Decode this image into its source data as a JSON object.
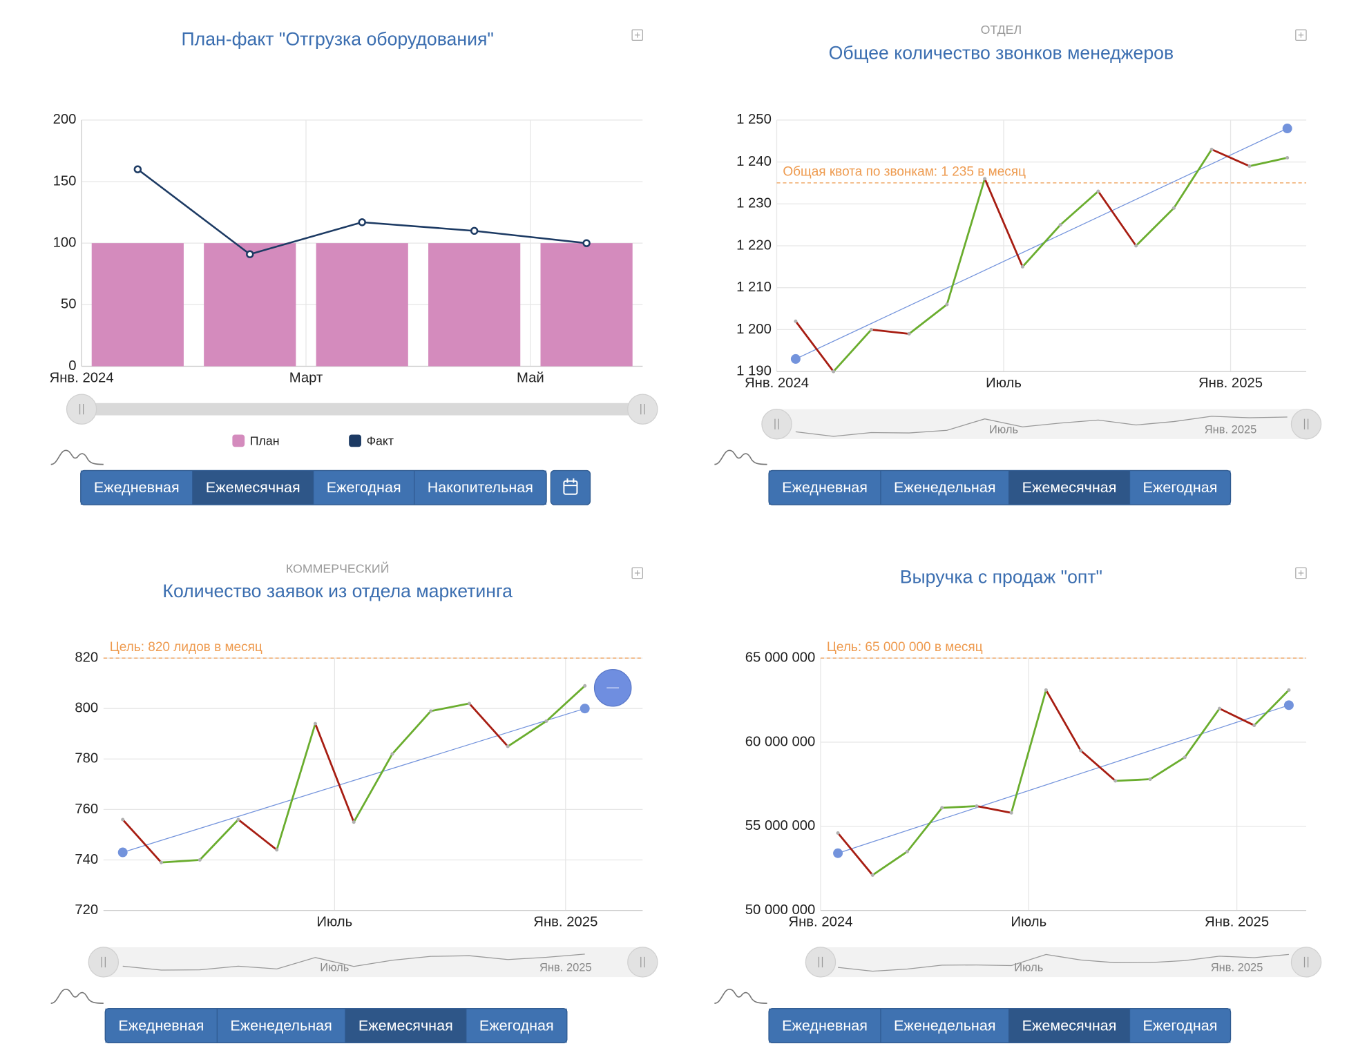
{
  "chart_data": [
    {
      "type": "bar",
      "title": "План-факт \"Отгрузка оборудования\"",
      "x": [
        "2024-01",
        "2024-02",
        "2024-03",
        "2024-04",
        "2024-05"
      ],
      "xlim": [
        "2024-01",
        "2024-06"
      ],
      "xticks": [
        {
          "value": "2024-01",
          "label": "Янв. 2024"
        },
        {
          "value": "2024-03",
          "label": "Март"
        },
        {
          "value": "2024-05",
          "label": "Май"
        }
      ],
      "ylim": [
        0,
        200
      ],
      "yticks": [
        0,
        50,
        100,
        150,
        200
      ],
      "grid": true,
      "series": [
        {
          "name": "План",
          "type": "bar",
          "color": "#d48bbd",
          "values": [
            100,
            100,
            100,
            100,
            100
          ]
        },
        {
          "name": "Факт",
          "type": "line",
          "color": "#1c3a63",
          "values": [
            160,
            91,
            117,
            110,
            100
          ]
        }
      ],
      "buttons": [
        "Ежедневная",
        "Ежемесячная",
        "Ежегодная",
        "Накопительная"
      ],
      "active_button": 1
    },
    {
      "type": "line",
      "subtitle": "ОТДЕЛ",
      "title": "Общее количество звонков менеджеров",
      "x": [
        "2024-01",
        "2024-02",
        "2024-03",
        "2024-04",
        "2024-05",
        "2024-06",
        "2024-07",
        "2024-08",
        "2024-09",
        "2024-10",
        "2024-11",
        "2024-12",
        "2025-01",
        "2025-02"
      ],
      "xlim": [
        "2024-01",
        "2025-03"
      ],
      "xticks": [
        {
          "value": "2024-01",
          "label": "Янв. 2024"
        },
        {
          "value": "2024-07",
          "label": "Июль"
        },
        {
          "value": "2025-01",
          "label": "Янв. 2025"
        }
      ],
      "ylim": [
        1190,
        1250
      ],
      "yticks": [
        {
          "value": 1190,
          "label": "1 190"
        },
        {
          "value": 1200,
          "label": "1 200"
        },
        {
          "value": 1210,
          "label": "1 210"
        },
        {
          "value": 1220,
          "label": "1 220"
        },
        {
          "value": 1230,
          "label": "1 230"
        },
        {
          "value": 1240,
          "label": "1 240"
        },
        {
          "value": 1250,
          "label": "1 250"
        }
      ],
      "values": [
        1202,
        1190,
        1200,
        1199,
        1206,
        1236,
        1215,
        1225,
        1233,
        1220,
        1229,
        1243,
        1239,
        1241
      ],
      "up_color": "#6aad2e",
      "down_color": "#a71d12",
      "trend": [
        1193,
        1248
      ],
      "trend_color": "#7393dc",
      "target": 1235,
      "target_label": "Общая квота по звонкам: 1 235 в месяц",
      "target_color": "#ee9a4e",
      "grid": true,
      "buttons": [
        "Ежедневная",
        "Еженедельная",
        "Ежемесячная",
        "Ежегодная"
      ],
      "active_button": 2
    },
    {
      "type": "line",
      "subtitle": "КОММЕРЧЕСКИЙ",
      "title": "Количество заявок из отдела маркетинга",
      "x": [
        "2024-01",
        "2024-02",
        "2024-03",
        "2024-04",
        "2024-05",
        "2024-06",
        "2024-07",
        "2024-08",
        "2024-09",
        "2024-10",
        "2024-11",
        "2024-12",
        "2025-01"
      ],
      "xlim": [
        "2024-01",
        "2025-03"
      ],
      "xticks": [
        {
          "value": "2024-07",
          "label": "Июль"
        },
        {
          "value": "2025-01",
          "label": "Янв. 2025"
        }
      ],
      "ylim": [
        720,
        820
      ],
      "yticks": [
        720,
        740,
        760,
        780,
        800,
        820
      ],
      "values": [
        756,
        739,
        740,
        756,
        744,
        794,
        755,
        782,
        799,
        802,
        785,
        795,
        809
      ],
      "up_color": "#6aad2e",
      "down_color": "#a71d12",
      "trend": [
        743,
        800
      ],
      "trend_color": "#7393dc",
      "target": 820,
      "target_label": "Цель: 820 лидов в месяц",
      "target_color": "#ee9a4e",
      "grid": true,
      "buttons": [
        "Ежедневная",
        "Еженедельная",
        "Ежемесячная",
        "Ежегодная"
      ],
      "active_button": 2
    },
    {
      "type": "line",
      "title": "Выручка с продаж \"опт\"",
      "x": [
        "2024-01",
        "2024-02",
        "2024-03",
        "2024-04",
        "2024-05",
        "2024-06",
        "2024-07",
        "2024-08",
        "2024-09",
        "2024-10",
        "2024-11",
        "2024-12",
        "2025-01",
        "2025-02"
      ],
      "xlim": [
        "2024-01",
        "2025-03"
      ],
      "xticks": [
        {
          "value": "2024-01",
          "label": "Янв. 2024"
        },
        {
          "value": "2024-07",
          "label": "Июль"
        },
        {
          "value": "2025-01",
          "label": "Янв. 2025"
        }
      ],
      "ylim": [
        50000000,
        65000000
      ],
      "yticks": [
        {
          "value": 50000000,
          "label": "50 000 000"
        },
        {
          "value": 55000000,
          "label": "55 000 000"
        },
        {
          "value": 60000000,
          "label": "60 000 000"
        },
        {
          "value": 65000000,
          "label": "65 000 000"
        }
      ],
      "values": [
        54600000,
        52100000,
        53500000,
        56100000,
        56200000,
        55800000,
        63100000,
        59500000,
        57700000,
        57800000,
        59100000,
        62000000,
        61000000,
        63100000
      ],
      "up_color": "#6aad2e",
      "down_color": "#a71d12",
      "trend": [
        53400000,
        62200000
      ],
      "trend_color": "#7393dc",
      "target": 65000000,
      "target_label": "Цель: 65 000 000 в месяц",
      "target_color": "#ee9a4e",
      "grid": true,
      "buttons": [
        "Ежедневная",
        "Еженедельная",
        "Ежемесячная",
        "Ежегодная"
      ],
      "active_button": 2
    }
  ]
}
